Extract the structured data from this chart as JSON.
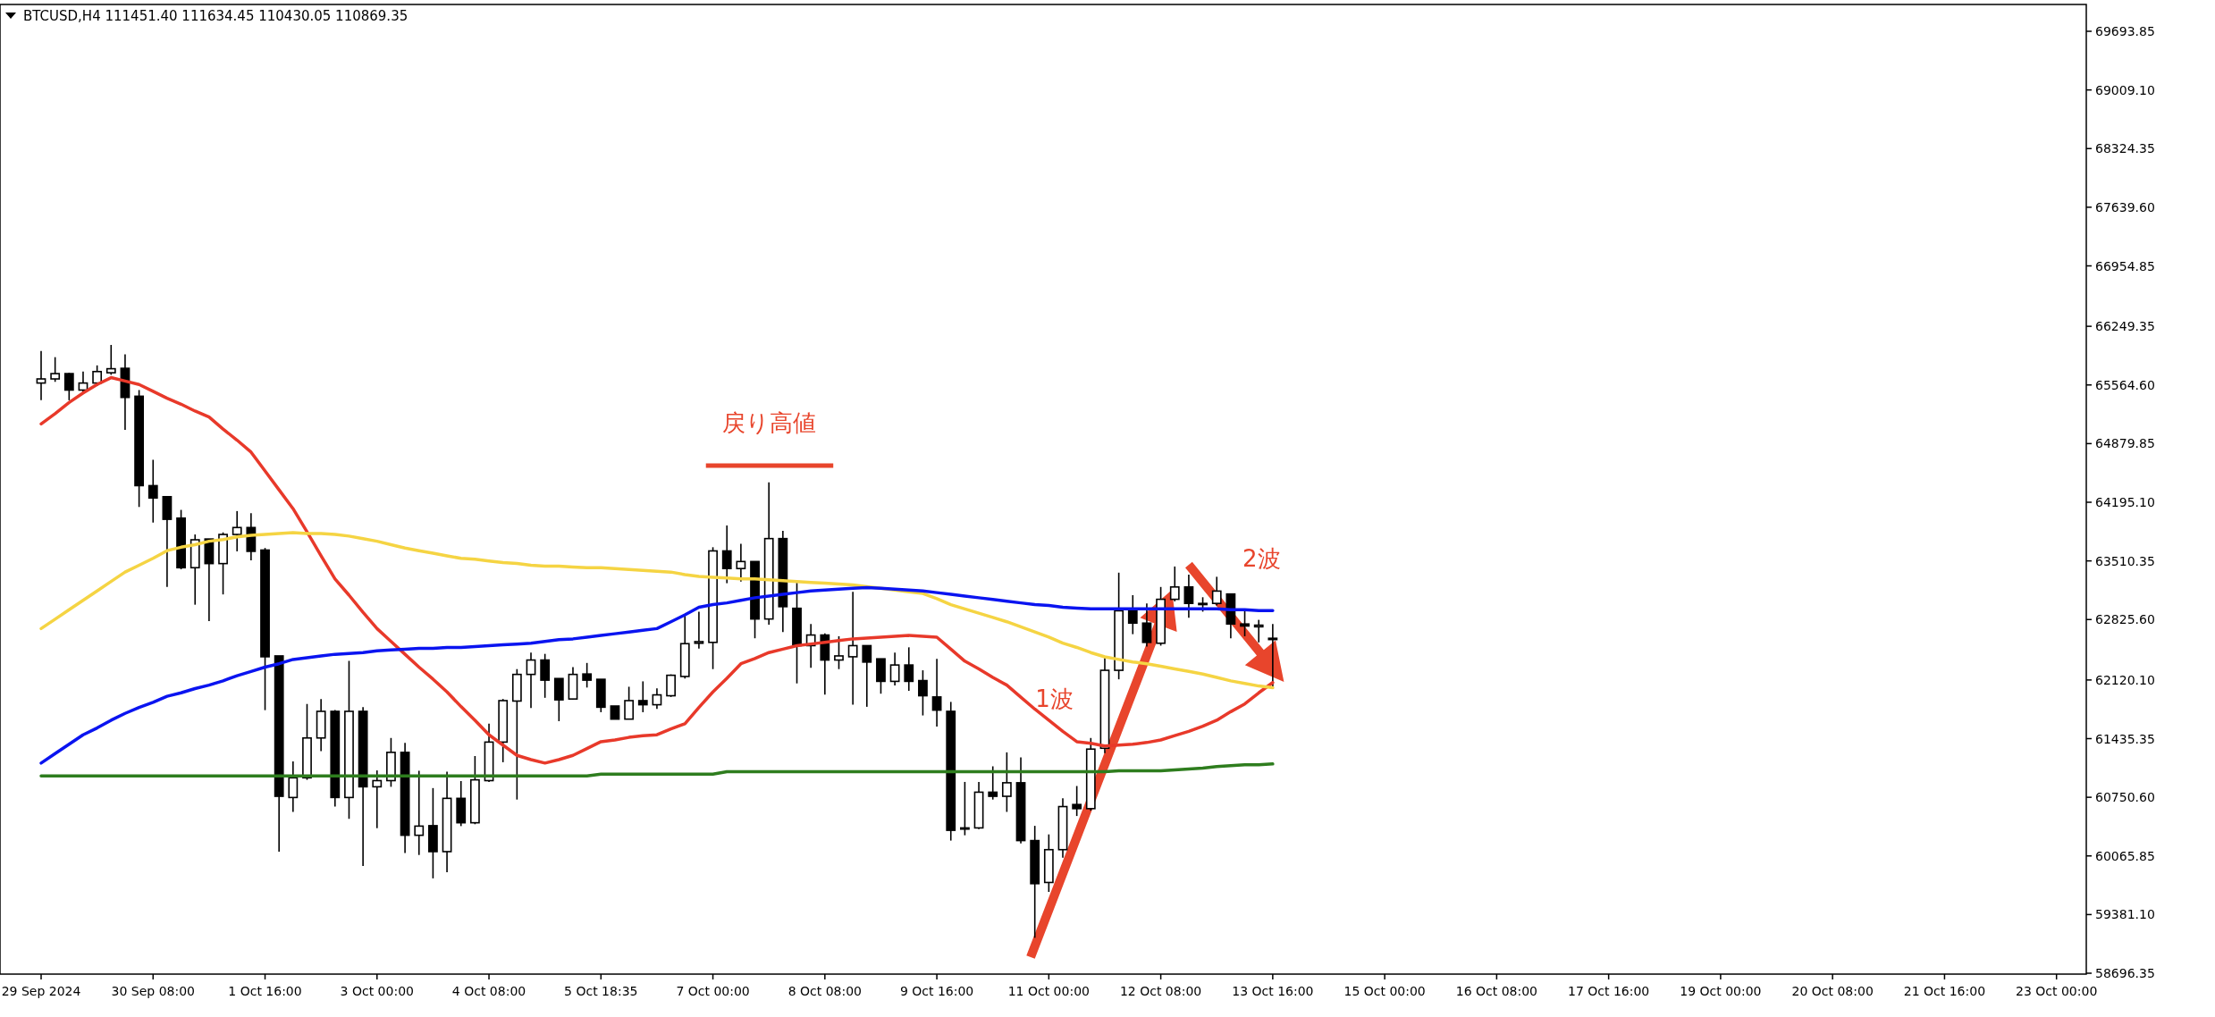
{
  "chart_data": {
    "type": "candlestick",
    "title": "BTCUSD,H4  111451.40 111634.45 110430.05 110869.35",
    "categories": [
      "29 Sep 2024",
      null,
      null,
      null,
      null,
      null,
      null,
      null,
      "30 Sep 08:00",
      null,
      null,
      null,
      null,
      null,
      null,
      null,
      "1 Oct 16:00",
      null,
      null,
      null,
      null,
      null,
      null,
      null,
      "3 Oct 00:00",
      null,
      null,
      null,
      null,
      null,
      null,
      null,
      "4 Oct 08:00",
      null,
      null,
      null,
      null,
      null,
      null,
      null,
      "5 Oct 18:35",
      null,
      null,
      null,
      null,
      null,
      null,
      null,
      "7 Oct 00:00",
      null,
      null,
      null,
      null,
      null,
      null,
      null,
      "8 Oct 08:00",
      null,
      null,
      null,
      null,
      null,
      null,
      null,
      "9 Oct 16:00",
      null,
      null,
      null,
      null,
      null,
      null,
      null,
      "11 Oct 00:00",
      null,
      null,
      null,
      null,
      null,
      null,
      null,
      "12 Oct 08:00",
      null,
      null,
      null,
      null,
      null,
      null,
      null,
      "13 Oct 16:00",
      null,
      null,
      null,
      null,
      null,
      null,
      null,
      "15 Oct 00:00",
      null,
      null,
      null,
      null,
      null,
      null,
      null,
      "16 Oct 08:00",
      null,
      null,
      null,
      null,
      null,
      null,
      null,
      "17 Oct 16:00",
      null,
      null,
      null,
      null,
      null,
      null,
      null,
      "19 Oct 00:00",
      null,
      null,
      null,
      null,
      null,
      null,
      null,
      "20 Oct 08:00",
      null,
      null,
      null,
      null,
      null,
      null,
      null,
      "21 Oct 16:00",
      null,
      null,
      null,
      null,
      null,
      null,
      null,
      "23 Oct 00:00",
      null,
      null
    ],
    "ohlc": [
      [
        65587,
        65960,
        65386,
        65635
      ],
      [
        65635,
        65889,
        65601,
        65697
      ],
      [
        65697,
        65707,
        65386,
        65505
      ],
      [
        65505,
        65721,
        65457,
        65587
      ],
      [
        65587,
        65793,
        65553,
        65721
      ],
      [
        65707,
        66032,
        65683,
        65754
      ],
      [
        65759,
        65922,
        65041,
        65419
      ],
      [
        65433,
        65505,
        64140,
        64389
      ],
      [
        64389,
        64691,
        63958,
        64245
      ],
      [
        64260,
        64260,
        63206,
        63996
      ],
      [
        64010,
        64106,
        63412,
        63431
      ],
      [
        63431,
        63819,
        62999,
        63757
      ],
      [
        63766,
        63766,
        62808,
        63479
      ],
      [
        63479,
        63843,
        63119,
        63819
      ],
      [
        63819,
        64092,
        63622,
        63900
      ],
      [
        63900,
        64068,
        63517,
        63622
      ],
      [
        63637,
        63661,
        61768,
        62391
      ],
      [
        62401,
        62401,
        60116,
        60762
      ],
      [
        60748,
        61170,
        60580,
        60978
      ],
      [
        60978,
        61840,
        60954,
        61443
      ],
      [
        61443,
        61898,
        61289,
        61754
      ],
      [
        61754,
        61768,
        60642,
        60748
      ],
      [
        60748,
        62343,
        60499,
        61754
      ],
      [
        61754,
        61802,
        59948,
        60873
      ],
      [
        60873,
        61064,
        60390,
        60945
      ],
      [
        60945,
        61443,
        60873,
        61275
      ],
      [
        61275,
        61385,
        60101,
        60307
      ],
      [
        60307,
        61060,
        60077,
        60414
      ],
      [
        60419,
        60858,
        59804,
        60116
      ],
      [
        60116,
        61050,
        59876,
        60738
      ],
      [
        60738,
        60940,
        60414,
        60453
      ],
      [
        60453,
        61232,
        60436,
        60954
      ],
      [
        60945,
        61610,
        60930,
        61395
      ],
      [
        61395,
        61898,
        61160,
        61879
      ],
      [
        61874,
        62247,
        60724,
        62185
      ],
      [
        62185,
        62439,
        61792,
        62353
      ],
      [
        62353,
        62425,
        61912,
        62118
      ],
      [
        62137,
        62137,
        61639,
        61888
      ],
      [
        61898,
        62271,
        61888,
        62185
      ],
      [
        62190,
        62319,
        62032,
        62118
      ],
      [
        62128,
        62128,
        61744,
        61802
      ],
      [
        61816,
        61816,
        61663,
        61663
      ],
      [
        61663,
        62041,
        61663,
        61879
      ],
      [
        61879,
        62104,
        61744,
        61831
      ],
      [
        61831,
        62022,
        61783,
        61946
      ],
      [
        61936,
        62185,
        61922,
        62175
      ],
      [
        62161,
        62870,
        62137,
        62544
      ],
      [
        62549,
        62918,
        62487,
        62568
      ],
      [
        62559,
        63670,
        62247,
        63627
      ],
      [
        63627,
        63924,
        63250,
        63421
      ],
      [
        63421,
        63709,
        63268,
        63503
      ],
      [
        63503,
        63503,
        62607,
        62832
      ],
      [
        62832,
        64427,
        62765,
        63771
      ],
      [
        63771,
        63862,
        62679,
        62976
      ],
      [
        62957,
        63254,
        62080,
        62521
      ],
      [
        62521,
        62774,
        62262,
        62645
      ],
      [
        62645,
        62664,
        61950,
        62353
      ],
      [
        62353,
        62631,
        62247,
        62401
      ],
      [
        62391,
        63148,
        61831,
        62521
      ],
      [
        62521,
        62521,
        61807,
        62329
      ],
      [
        62367,
        62367,
        61960,
        62104
      ],
      [
        62104,
        62439,
        62056,
        62295
      ],
      [
        62295,
        62501,
        61993,
        62104
      ],
      [
        62113,
        62233,
        61706,
        61936
      ],
      [
        61922,
        62367,
        61577,
        61768
      ],
      [
        61754,
        61864,
        60245,
        60365
      ],
      [
        60393,
        60930,
        60307,
        60379
      ],
      [
        60393,
        60930,
        60379,
        60810
      ],
      [
        60810,
        61112,
        60724,
        60762
      ],
      [
        60762,
        61275,
        60580,
        60920
      ],
      [
        60920,
        61217,
        60211,
        60245
      ],
      [
        60245,
        60417,
        59110,
        59742
      ],
      [
        59756,
        60317,
        59646,
        60139
      ],
      [
        60139,
        60738,
        60044,
        60642
      ],
      [
        60666,
        60882,
        60532,
        60618
      ],
      [
        60618,
        61443,
        60594,
        61313
      ],
      [
        61323,
        62377,
        61265,
        62233
      ],
      [
        62233,
        63373,
        62128,
        62928
      ],
      [
        62928,
        63110,
        62655,
        62784
      ],
      [
        62784,
        63014,
        62511,
        62559
      ],
      [
        62549,
        63206,
        62521,
        63062
      ],
      [
        63062,
        63445,
        63038,
        63206
      ],
      [
        63206,
        63349,
        62846,
        63014
      ],
      [
        63014,
        63086,
        62918,
        63000
      ],
      [
        63014,
        63325,
        62990,
        63158
      ],
      [
        63124,
        63124,
        62607,
        62774
      ],
      [
        62774,
        62928,
        62631,
        62750
      ],
      [
        62741,
        62822,
        62559,
        62760
      ],
      [
        62607,
        62774,
        62032,
        62592
      ],
      null,
      null,
      null,
      null,
      null,
      null,
      null,
      null,
      null,
      null,
      null,
      null,
      null,
      null,
      null,
      null,
      null,
      null,
      null,
      null,
      null,
      null,
      null,
      null,
      null,
      null,
      null,
      null,
      null,
      null,
      null,
      null,
      null,
      null,
      null,
      null,
      null,
      null,
      null,
      null,
      null,
      null,
      null,
      null,
      null,
      null,
      null,
      null,
      null,
      null,
      null,
      null,
      null,
      null,
      null,
      null,
      null,
      null
    ],
    "series": [
      {
        "type": "line",
        "color": "#e8392a",
        "values": [
          65110,
          65230,
          65360,
          65470,
          65570,
          65650,
          65610,
          65570,
          65490,
          65410,
          65340,
          65260,
          65190,
          65050,
          64920,
          64780,
          64560,
          64340,
          64120,
          63850,
          63570,
          63300,
          63110,
          62910,
          62720,
          62570,
          62420,
          62270,
          62130,
          61980,
          61810,
          61650,
          61480,
          61360,
          61240,
          61190,
          61150,
          61190,
          61240,
          61320,
          61400,
          61420,
          61450,
          61470,
          61480,
          61550,
          61610,
          61800,
          61980,
          62140,
          62310,
          62370,
          62440,
          62480,
          62520,
          62540,
          62560,
          62580,
          62600,
          62610,
          62620,
          62630,
          62640,
          62630,
          62620,
          62480,
          62340,
          62250,
          62150,
          62060,
          61920,
          61780,
          61650,
          61520,
          61400,
          61380,
          61350,
          61360,
          61370,
          61390,
          61420,
          61470,
          61520,
          61580,
          61650,
          61750,
          61840,
          61970,
          62090,
          null,
          null,
          null,
          null,
          null,
          null,
          null,
          null,
          null,
          null,
          null,
          null,
          null,
          null,
          null,
          null,
          null,
          null,
          null,
          null,
          null,
          null,
          null,
          null,
          null,
          null,
          null,
          null,
          null,
          null,
          null,
          null,
          null,
          null,
          null,
          null,
          null,
          null,
          null,
          null,
          null,
          null,
          null,
          null,
          null,
          null,
          null,
          null,
          null,
          null,
          null,
          null,
          null,
          null,
          null,
          null,
          null,
          null
        ]
      },
      {
        "type": "line",
        "color": "#f5d443",
        "values": [
          62720,
          62830,
          62940,
          63050,
          63160,
          63270,
          63380,
          63460,
          63540,
          63630,
          63670,
          63700,
          63740,
          63760,
          63790,
          63810,
          63820,
          63830,
          63840,
          63830,
          63830,
          63820,
          63800,
          63770,
          63740,
          63700,
          63660,
          63630,
          63600,
          63570,
          63540,
          63530,
          63510,
          63490,
          63480,
          63460,
          63450,
          63450,
          63440,
          63430,
          63430,
          63420,
          63410,
          63400,
          63390,
          63380,
          63350,
          63330,
          63320,
          63310,
          63300,
          63300,
          63290,
          63280,
          63270,
          63260,
          63250,
          63240,
          63230,
          63210,
          63190,
          63170,
          63150,
          63130,
          63070,
          63000,
          62950,
          62900,
          62850,
          62800,
          62740,
          62680,
          62620,
          62550,
          62500,
          62440,
          62390,
          62360,
          62330,
          62310,
          62280,
          62250,
          62220,
          62190,
          62150,
          62110,
          62080,
          62050,
          62030,
          null,
          null,
          null,
          null,
          null,
          null,
          null,
          null,
          null,
          null,
          null,
          null,
          null,
          null,
          null,
          null,
          null,
          null,
          null,
          null,
          null,
          null,
          null,
          null,
          null,
          null,
          null,
          null,
          null,
          null,
          null,
          null,
          null,
          null,
          null,
          null,
          null,
          null,
          null,
          null,
          null,
          null,
          null,
          null,
          null,
          null,
          null,
          null,
          null,
          null,
          null,
          null,
          null,
          null,
          null,
          null,
          null,
          null
        ]
      },
      {
        "type": "line",
        "color": "#0a14f0",
        "values": [
          61150,
          61260,
          61370,
          61480,
          61560,
          61650,
          61730,
          61800,
          61860,
          61930,
          61970,
          62020,
          62060,
          62110,
          62170,
          62220,
          62270,
          62310,
          62360,
          62380,
          62400,
          62420,
          62430,
          62440,
          62460,
          62470,
          62480,
          62490,
          62490,
          62500,
          62500,
          62510,
          62520,
          62530,
          62540,
          62550,
          62570,
          62590,
          62600,
          62620,
          62640,
          62660,
          62680,
          62700,
          62720,
          62800,
          62880,
          62970,
          63000,
          63020,
          63050,
          63080,
          63100,
          63120,
          63140,
          63160,
          63170,
          63180,
          63190,
          63200,
          63190,
          63180,
          63170,
          63160,
          63140,
          63120,
          63100,
          63080,
          63060,
          63040,
          63020,
          63000,
          62990,
          62970,
          62960,
          62950,
          62950,
          62950,
          62950,
          62950,
          62950,
          62950,
          62950,
          62950,
          62950,
          62940,
          62940,
          62930,
          62930,
          null,
          null,
          null,
          null,
          null,
          null,
          null,
          null,
          null,
          null,
          null,
          null,
          null,
          null,
          null,
          null,
          null,
          null,
          null,
          null,
          null,
          null,
          null,
          null,
          null,
          null,
          null,
          null,
          null,
          null,
          null,
          null,
          null,
          null,
          null,
          null,
          null,
          null,
          null,
          null,
          null,
          null,
          null,
          null,
          null,
          null,
          null,
          null,
          null,
          null,
          null,
          null,
          null,
          null,
          null,
          null,
          null,
          null
        ]
      },
      {
        "type": "line",
        "color": "#2e7d1e",
        "values": [
          61000,
          61000,
          61000,
          61000,
          61000,
          61000,
          61000,
          61000,
          61000,
          61000,
          61000,
          61000,
          61000,
          61000,
          61000,
          61000,
          61000,
          61000,
          61000,
          61000,
          61000,
          61000,
          61000,
          61000,
          61000,
          61000,
          61000,
          61000,
          61000,
          61000,
          61000,
          61000,
          61000,
          61000,
          61000,
          61000,
          61000,
          61000,
          61000,
          61000,
          61020,
          61020,
          61020,
          61020,
          61020,
          61020,
          61020,
          61020,
          61020,
          61050,
          61050,
          61050,
          61050,
          61050,
          61050,
          61050,
          61050,
          61050,
          61050,
          61050,
          61050,
          61050,
          61050,
          61050,
          61050,
          61050,
          61050,
          61050,
          61050,
          61050,
          61050,
          61050,
          61050,
          61050,
          61050,
          61050,
          61050,
          61060,
          61060,
          61060,
          61060,
          61070,
          61080,
          61090,
          61110,
          61120,
          61130,
          61130,
          61140,
          null,
          null,
          null,
          null,
          null,
          null,
          null,
          null,
          null,
          null,
          null,
          null,
          null,
          null,
          null,
          null,
          null,
          null,
          null,
          null,
          null,
          null,
          null,
          null,
          null,
          null,
          null,
          null,
          null,
          null,
          null,
          null,
          null,
          null,
          null,
          null,
          null,
          null,
          null,
          null,
          null,
          null,
          null,
          null,
          null,
          null,
          null,
          null,
          null,
          null,
          null,
          null,
          null,
          null,
          null,
          null,
          null,
          null
        ]
      }
    ],
    "ylim": [
      58686,
      70007
    ],
    "yticks": [
      69693.85,
      {
        "value": 69009.1,
        "label": "69009.10"
      },
      68324.35,
      {
        "value": 67639.6,
        "label": "67639.60"
      },
      66954.85,
      66249.35,
      {
        "value": 65564.6,
        "label": "65564.60"
      },
      64879.85,
      {
        "value": 64195.1,
        "label": "64195.10"
      },
      63510.35,
      {
        "value": 62825.6,
        "label": "62825.60"
      },
      {
        "value": 62120.1,
        "label": "62120.10"
      },
      61435.35,
      {
        "value": 60750.6,
        "label": "60750.60"
      },
      60065.85,
      {
        "value": 59381.1,
        "label": "59381.10"
      },
      58696.35
    ],
    "annotations": [
      "戻り高値",
      "1波",
      "2波"
    ]
  }
}
